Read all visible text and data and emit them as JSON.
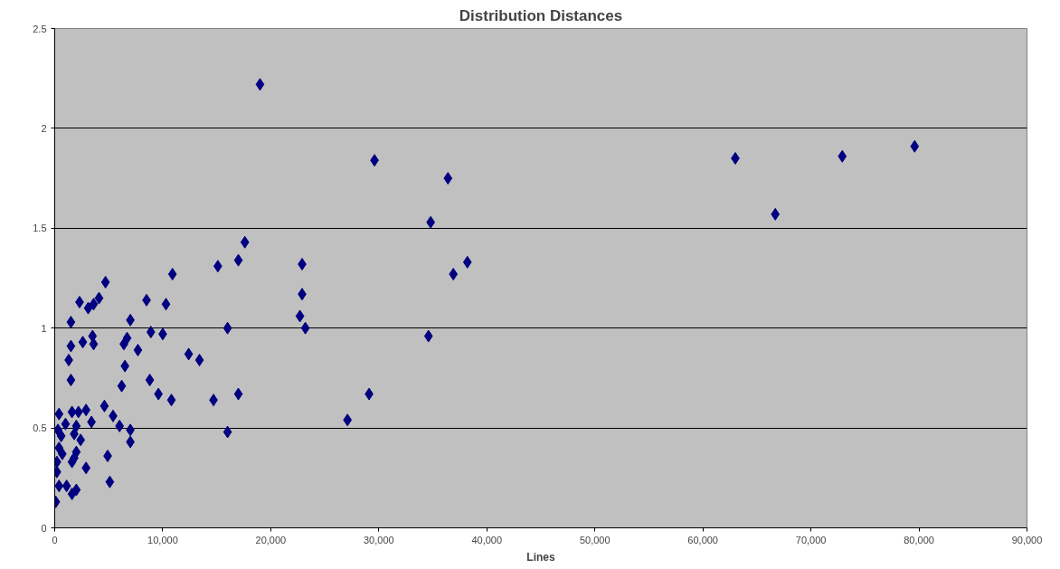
{
  "chart_data": {
    "type": "scatter",
    "title": "Distribution Distances",
    "xlabel": "Lines",
    "marker": "diamond",
    "grid": "y",
    "xlim": [
      0,
      90000
    ],
    "ylim": [
      0,
      2.5
    ],
    "xticks": [
      0,
      {
        "value": 10000,
        "label": "10,000"
      },
      {
        "value": 20000,
        "label": "20,000"
      },
      {
        "value": 30000,
        "label": "30,000"
      },
      {
        "value": 40000,
        "label": "40,000"
      },
      {
        "value": 50000,
        "label": "50,000"
      },
      {
        "value": 60000,
        "label": "60,000"
      },
      {
        "value": 70000,
        "label": "70,000"
      },
      {
        "value": 80000,
        "label": "80,000"
      },
      {
        "value": 90000,
        "label": "90,000"
      }
    ],
    "yticks": [
      0,
      0.5,
      1,
      1.5,
      2,
      2.5
    ],
    "series": [
      {
        "color": "#000080",
        "x": [
          19000,
          29600,
          36400,
          34800,
          36900,
          38200,
          34600,
          29100,
          27100,
          63000,
          66700,
          72900,
          79600,
          15100,
          17000,
          17600,
          22900,
          22900,
          22700,
          23200,
          16000,
          17000,
          14700,
          16000,
          12400,
          13400,
          10900,
          10300,
          10000,
          8500,
          8900,
          8800,
          9600,
          10800,
          7700,
          7000,
          6700,
          6400,
          6500,
          6200,
          6000,
          7000,
          7000,
          5400,
          4600,
          4900,
          5100,
          4700,
          4100,
          3600,
          3100,
          2300,
          2600,
          3600,
          3500,
          3400,
          1500,
          1500,
          1300,
          1500,
          400,
          1600,
          2200,
          2900,
          300,
          1800,
          2400,
          400,
          2000,
          200,
          1600,
          2900,
          200,
          400,
          1100,
          2000,
          1600,
          100,
          600,
          1000,
          2000,
          700,
          1800
        ],
        "values": [
          2.22,
          1.84,
          1.75,
          1.53,
          1.27,
          1.33,
          0.96,
          0.67,
          0.54,
          1.85,
          1.57,
          1.86,
          1.91,
          1.31,
          1.34,
          1.43,
          1.32,
          1.17,
          1.06,
          1.0,
          1.0,
          0.67,
          0.64,
          0.48,
          0.87,
          0.84,
          1.27,
          1.12,
          0.97,
          1.14,
          0.98,
          0.74,
          0.67,
          0.64,
          0.89,
          1.04,
          0.95,
          0.92,
          0.81,
          0.71,
          0.51,
          0.49,
          0.43,
          0.56,
          0.61,
          0.36,
          0.23,
          1.23,
          1.15,
          1.12,
          1.1,
          1.13,
          0.93,
          0.92,
          0.96,
          0.53,
          1.03,
          0.91,
          0.84,
          0.74,
          0.57,
          0.58,
          0.58,
          0.59,
          0.49,
          0.47,
          0.44,
          0.4,
          0.38,
          0.33,
          0.33,
          0.3,
          0.28,
          0.21,
          0.21,
          0.19,
          0.17,
          0.13,
          0.46,
          0.52,
          0.51,
          0.37,
          0.35
        ]
      }
    ]
  }
}
